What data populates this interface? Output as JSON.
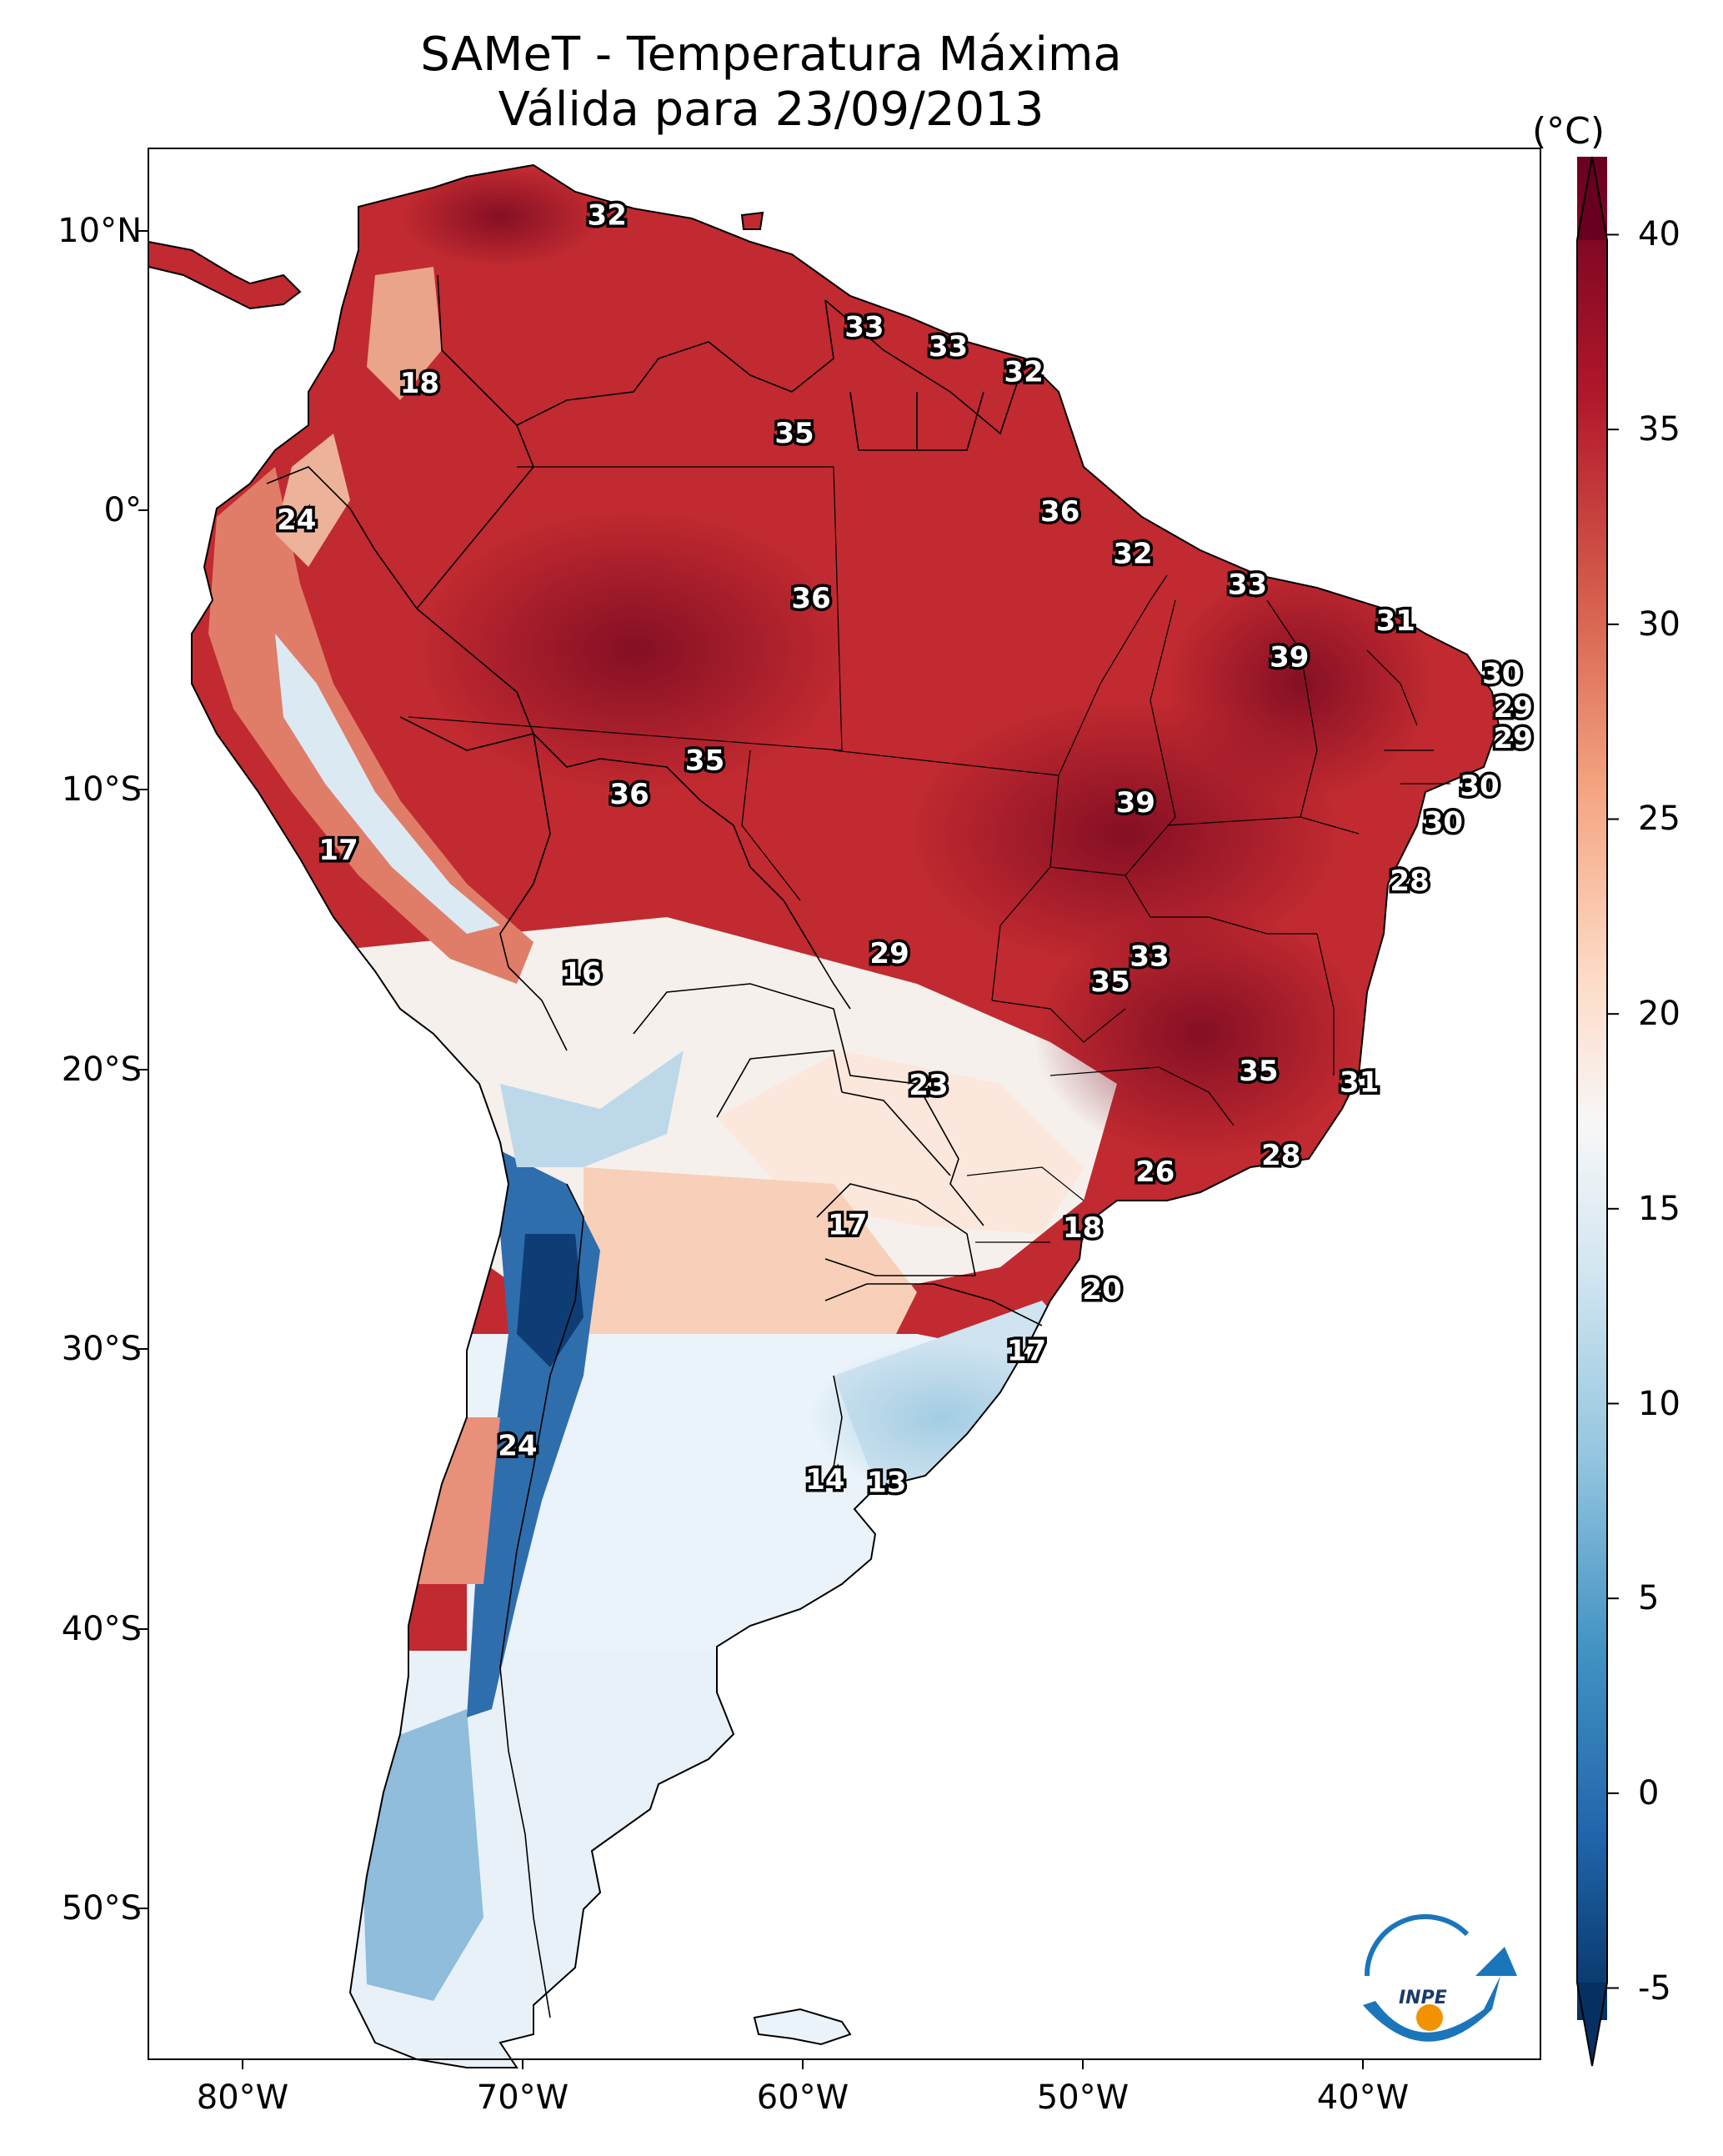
{
  "title": {
    "line1": "SAMeT - Temperatura Máxima",
    "line2": "Válida para 23/09/2013"
  },
  "lat_ticks": [
    "10°N",
    "0°",
    "10°S",
    "20°S",
    "30°S",
    "40°S",
    "50°S"
  ],
  "lon_ticks": [
    "80°W",
    "70°W",
    "60°W",
    "50°W",
    "40°W"
  ],
  "colorbar": {
    "unit": "(°C)",
    "min": -7,
    "max": 42,
    "ticks": [
      "40",
      "35",
      "30",
      "25",
      "20",
      "15",
      "10",
      "5",
      "0",
      "-5"
    ],
    "colors": [
      "#053061",
      "#2166ac",
      "#4393c3",
      "#92c5de",
      "#d1e5f0",
      "#f7f7f7",
      "#fddbc7",
      "#f4a582",
      "#d6604d",
      "#b2182b",
      "#67001f"
    ]
  },
  "logo": {
    "text": "INPE"
  },
  "contour_labels": [
    {
      "text": "32",
      "lon": -67,
      "lat": 10.6
    },
    {
      "text": "33",
      "lon": -57.8,
      "lat": 6.6
    },
    {
      "text": "33",
      "lon": -54.8,
      "lat": 5.9
    },
    {
      "text": "32",
      "lon": -52.1,
      "lat": 5.0
    },
    {
      "text": "18",
      "lon": -73.7,
      "lat": 4.6
    },
    {
      "text": "35",
      "lon": -60.3,
      "lat": 2.8
    },
    {
      "text": "24",
      "lon": -78.1,
      "lat": -0.3
    },
    {
      "text": "36",
      "lon": -50.8,
      "lat": 0.0
    },
    {
      "text": "32",
      "lon": -48.2,
      "lat": -1.5
    },
    {
      "text": "36",
      "lon": -59.7,
      "lat": -3.1
    },
    {
      "text": "33",
      "lon": -44.1,
      "lat": -2.6
    },
    {
      "text": "31",
      "lon": -38.8,
      "lat": -3.9
    },
    {
      "text": "39",
      "lon": -42.6,
      "lat": -5.2
    },
    {
      "text": "30",
      "lon": -35.0,
      "lat": -5.8
    },
    {
      "text": "29",
      "lon": -34.6,
      "lat": -7.0
    },
    {
      "text": "29",
      "lon": -34.6,
      "lat": -8.1
    },
    {
      "text": "35",
      "lon": -63.5,
      "lat": -8.9
    },
    {
      "text": "36",
      "lon": -66.2,
      "lat": -10.1
    },
    {
      "text": "39",
      "lon": -48.1,
      "lat": -10.4
    },
    {
      "text": "30",
      "lon": -35.8,
      "lat": -9.8
    },
    {
      "text": "30",
      "lon": -37.1,
      "lat": -11.1
    },
    {
      "text": "17",
      "lon": -76.6,
      "lat": -12.1
    },
    {
      "text": "28",
      "lon": -38.3,
      "lat": -13.2
    },
    {
      "text": "29",
      "lon": -56.9,
      "lat": -15.8
    },
    {
      "text": "33",
      "lon": -47.6,
      "lat": -15.9
    },
    {
      "text": "35",
      "lon": -49.0,
      "lat": -16.8
    },
    {
      "text": "16",
      "lon": -67.9,
      "lat": -16.5
    },
    {
      "text": "35",
      "lon": -43.7,
      "lat": -20.0
    },
    {
      "text": "31",
      "lon": -40.1,
      "lat": -20.4
    },
    {
      "text": "23",
      "lon": -55.5,
      "lat": -20.5
    },
    {
      "text": "28",
      "lon": -42.9,
      "lat": -23.0
    },
    {
      "text": "26",
      "lon": -47.4,
      "lat": -23.6
    },
    {
      "text": "17",
      "lon": -58.4,
      "lat": -25.5
    },
    {
      "text": "18",
      "lon": -50.0,
      "lat": -25.6
    },
    {
      "text": "20",
      "lon": -49.3,
      "lat": -27.8
    },
    {
      "text": "17",
      "lon": -52.0,
      "lat": -30.0
    },
    {
      "text": "24",
      "lon": -70.2,
      "lat": -33.4
    },
    {
      "text": "14",
      "lon": -59.2,
      "lat": -34.6
    },
    {
      "text": "13",
      "lon": -57.0,
      "lat": -34.7
    }
  ]
}
